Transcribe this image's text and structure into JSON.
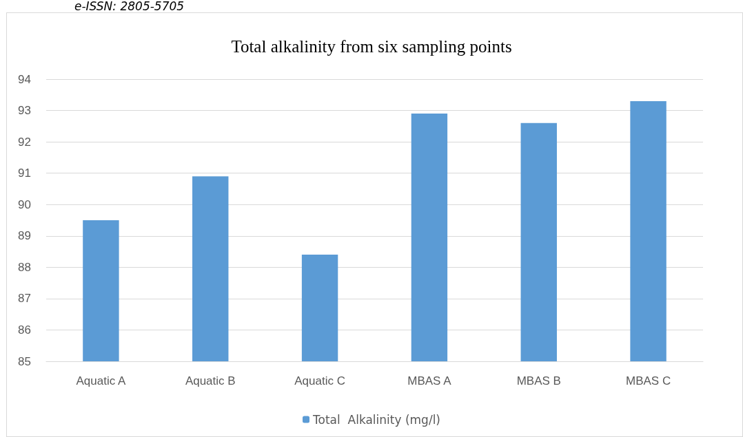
{
  "chart_data": {
    "type": "bar",
    "title": "Total alkalinity from six sampling points",
    "annotations": [
      "e-ISSN: 2805-5705"
    ],
    "categories": [
      "Aquatic A",
      "Aquatic B",
      "Aquatic C",
      "MBAS A",
      "MBAS B",
      "MBAS C"
    ],
    "series": [
      {
        "name": "Total  Alkalinity (mg/l)",
        "color": "#5b9bd5",
        "values": [
          89.5,
          90.9,
          88.4,
          92.9,
          92.6,
          93.3
        ]
      }
    ],
    "ylim": [
      85,
      94
    ],
    "yticks": [
      85,
      86,
      87,
      88,
      89,
      90,
      91,
      92,
      93,
      94
    ],
    "grid": "y",
    "legend": "bottom"
  }
}
